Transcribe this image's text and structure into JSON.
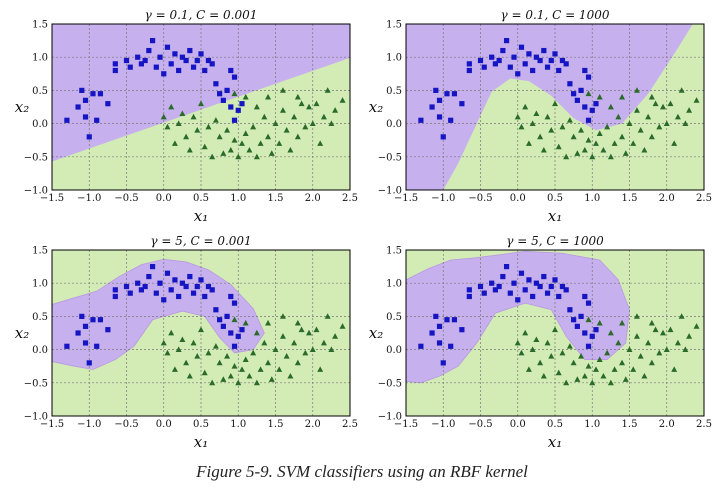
{
  "caption": "Figure 5-9. SVM classifiers using an RBF kernel",
  "colors": {
    "blue_region": "#c7b0ee",
    "green_region": "#d3ecb6",
    "square": "#1515c4",
    "triangle": "#2a6b2a"
  },
  "chart_data": [
    {
      "type": "scatter",
      "title": "γ = 0.1, C = 0.001",
      "xlabel": "x₁",
      "ylabel": "x₂",
      "xlim": [
        -1.5,
        2.5
      ],
      "ylim": [
        -1.0,
        1.5
      ],
      "grid": true,
      "xticks": [
        "−1.5",
        "−1.0",
        "−0.5",
        "0.0",
        "0.5",
        "1.0",
        "1.5",
        "2.0",
        "2.5"
      ],
      "yticks": [
        "−1.0",
        "−0.5",
        "0.0",
        "0.5",
        "1.0",
        "1.5"
      ],
      "boundary": [
        [
          -1.5,
          -0.57
        ],
        [
          2.5,
          0.99
        ]
      ]
    },
    {
      "type": "scatter",
      "title": "γ = 0.1, C = 1000",
      "xlabel": "x₁",
      "ylabel": "x₂",
      "xlim": [
        -1.5,
        2.5
      ],
      "ylim": [
        -1.0,
        1.5
      ],
      "grid": true,
      "xticks": [
        "−1.5",
        "−1.0",
        "−0.5",
        "0.0",
        "0.5",
        "1.0",
        "1.5",
        "2.0",
        "2.5"
      ],
      "yticks": [
        "−1.0",
        "−0.5",
        "0.0",
        "0.5",
        "1.0",
        "1.5"
      ],
      "boundary": [
        [
          -1.0,
          -1.0
        ],
        [
          -0.8,
          -0.6
        ],
        [
          -0.55,
          0.0
        ],
        [
          -0.35,
          0.48
        ],
        [
          -0.1,
          0.68
        ],
        [
          0.15,
          0.64
        ],
        [
          0.45,
          0.42
        ],
        [
          0.75,
          0.08
        ],
        [
          1.05,
          -0.1
        ],
        [
          1.4,
          0.0
        ],
        [
          1.75,
          0.45
        ],
        [
          2.1,
          1.05
        ],
        [
          2.35,
          1.5
        ]
      ]
    },
    {
      "type": "scatter",
      "title": "γ = 5, C = 0.001",
      "xlabel": "x₁",
      "ylabel": "x₂",
      "xlim": [
        -1.5,
        2.5
      ],
      "ylim": [
        -1.0,
        1.5
      ],
      "grid": true,
      "xticks": [
        "−1.5",
        "−1.0",
        "−0.5",
        "0.0",
        "0.5",
        "1.0",
        "1.5",
        "2.0",
        "2.5"
      ],
      "yticks": [
        "−1.0",
        "−0.5",
        "0.0",
        "0.5",
        "1.0",
        "1.5"
      ],
      "region": [
        [
          -1.5,
          0.68
        ],
        [
          -1.2,
          0.78
        ],
        [
          -0.9,
          0.88
        ],
        [
          -0.6,
          1.1
        ],
        [
          -0.3,
          1.28
        ],
        [
          0.0,
          1.36
        ],
        [
          0.3,
          1.32
        ],
        [
          0.6,
          1.2
        ],
        [
          0.9,
          0.98
        ],
        [
          1.2,
          0.62
        ],
        [
          1.35,
          0.25
        ],
        [
          1.2,
          0.0
        ],
        [
          0.95,
          -0.05
        ],
        [
          0.75,
          0.18
        ],
        [
          0.55,
          0.5
        ],
        [
          0.25,
          0.58
        ],
        [
          -0.15,
          0.45
        ],
        [
          -0.4,
          0.05
        ],
        [
          -0.65,
          -0.15
        ],
        [
          -0.95,
          -0.3
        ],
        [
          -1.2,
          -0.25
        ],
        [
          -1.5,
          -0.18
        ]
      ]
    },
    {
      "type": "scatter",
      "title": "γ = 5, C = 1000",
      "xlabel": "x₁",
      "ylabel": "x₂",
      "xlim": [
        -1.5,
        2.5
      ],
      "ylim": [
        -1.0,
        1.5
      ],
      "grid": true,
      "xticks": [
        "−1.5",
        "−1.0",
        "−0.5",
        "0.0",
        "0.5",
        "1.0",
        "1.5",
        "2.0",
        "2.5"
      ],
      "yticks": [
        "−1.0",
        "−0.5",
        "0.0",
        "0.5",
        "1.0",
        "1.5"
      ],
      "region": [
        [
          -1.5,
          1.05
        ],
        [
          -1.2,
          1.22
        ],
        [
          -0.9,
          1.35
        ],
        [
          -0.6,
          1.38
        ],
        [
          -0.3,
          1.42
        ],
        [
          0.1,
          1.48
        ],
        [
          0.6,
          1.45
        ],
        [
          1.1,
          1.35
        ],
        [
          1.35,
          1.05
        ],
        [
          1.5,
          0.6
        ],
        [
          1.45,
          0.1
        ],
        [
          1.2,
          -0.15
        ],
        [
          0.9,
          -0.15
        ],
        [
          0.65,
          0.2
        ],
        [
          0.45,
          0.6
        ],
        [
          0.1,
          0.7
        ],
        [
          -0.3,
          0.55
        ],
        [
          -0.55,
          0.1
        ],
        [
          -0.8,
          -0.25
        ],
        [
          -1.05,
          -0.4
        ],
        [
          -1.3,
          -0.5
        ],
        [
          -1.5,
          -0.48
        ]
      ]
    }
  ],
  "points": {
    "squares": [
      [
        -1.3,
        0.05
      ],
      [
        -1.15,
        0.25
      ],
      [
        -1.1,
        0.5
      ],
      [
        -1.05,
        0.35
      ],
      [
        -1.05,
        0.1
      ],
      [
        -1.0,
        -0.2
      ],
      [
        -0.95,
        0.45
      ],
      [
        -0.9,
        0.05
      ],
      [
        -0.85,
        0.45
      ],
      [
        -0.75,
        0.3
      ],
      [
        -0.65,
        0.9
      ],
      [
        -0.65,
        0.8
      ],
      [
        -0.5,
        0.95
      ],
      [
        -0.45,
        0.85
      ],
      [
        -0.35,
        1.0
      ],
      [
        -0.3,
        0.9
      ],
      [
        -0.25,
        0.95
      ],
      [
        -0.2,
        1.1
      ],
      [
        -0.15,
        1.25
      ],
      [
        -0.1,
        0.85
      ],
      [
        -0.05,
        1.0
      ],
      [
        0.0,
        0.75
      ],
      [
        0.05,
        1.15
      ],
      [
        0.1,
        0.9
      ],
      [
        0.15,
        1.05
      ],
      [
        0.2,
        0.8
      ],
      [
        0.25,
        1.0
      ],
      [
        0.3,
        0.95
      ],
      [
        0.35,
        1.1
      ],
      [
        0.4,
        0.85
      ],
      [
        0.45,
        0.95
      ],
      [
        0.5,
        1.05
      ],
      [
        0.55,
        0.8
      ],
      [
        0.6,
        0.95
      ],
      [
        0.65,
        0.9
      ],
      [
        0.7,
        0.6
      ],
      [
        0.75,
        0.45
      ],
      [
        0.8,
        0.35
      ],
      [
        0.85,
        0.5
      ],
      [
        0.9,
        0.25
      ],
      [
        0.95,
        0.05
      ],
      [
        0.9,
        0.8
      ],
      [
        0.95,
        0.7
      ],
      [
        1.0,
        0.2
      ],
      [
        1.05,
        0.3
      ]
    ],
    "triangles": [
      [
        0.0,
        0.1
      ],
      [
        0.05,
        -0.05
      ],
      [
        0.1,
        0.25
      ],
      [
        0.15,
        -0.3
      ],
      [
        0.2,
        0.0
      ],
      [
        0.25,
        0.15
      ],
      [
        0.3,
        -0.2
      ],
      [
        0.35,
        -0.4
      ],
      [
        0.4,
        0.1
      ],
      [
        0.45,
        -0.1
      ],
      [
        0.5,
        0.3
      ],
      [
        0.55,
        -0.35
      ],
      [
        0.6,
        -0.05
      ],
      [
        0.65,
        -0.5
      ],
      [
        0.7,
        0.05
      ],
      [
        0.75,
        -0.2
      ],
      [
        0.8,
        -0.45
      ],
      [
        0.85,
        -0.1
      ],
      [
        0.9,
        -0.4
      ],
      [
        0.95,
        -0.25
      ],
      [
        1.0,
        -0.5
      ],
      [
        1.05,
        -0.3
      ],
      [
        1.1,
        -0.15
      ],
      [
        1.15,
        -0.4
      ],
      [
        1.2,
        -0.05
      ],
      [
        1.25,
        -0.5
      ],
      [
        1.3,
        -0.3
      ],
      [
        1.35,
        0.1
      ],
      [
        1.4,
        -0.2
      ],
      [
        1.45,
        -0.45
      ],
      [
        1.5,
        0.0
      ],
      [
        1.55,
        -0.3
      ],
      [
        1.6,
        0.2
      ],
      [
        1.65,
        -0.1
      ],
      [
        1.7,
        -0.4
      ],
      [
        1.75,
        0.1
      ],
      [
        1.8,
        -0.2
      ],
      [
        1.85,
        0.3
      ],
      [
        1.9,
        -0.05
      ],
      [
        1.95,
        0.25
      ],
      [
        2.0,
        0.0
      ],
      [
        2.05,
        0.3
      ],
      [
        2.1,
        -0.3
      ],
      [
        2.15,
        0.1
      ],
      [
        2.2,
        0.5
      ],
      [
        2.25,
        0.0
      ],
      [
        2.3,
        0.2
      ],
      [
        2.4,
        0.35
      ],
      [
        0.95,
        0.45
      ],
      [
        1.1,
        0.4
      ],
      [
        1.25,
        0.25
      ],
      [
        1.6,
        0.5
      ],
      [
        1.8,
        0.4
      ],
      [
        1.4,
        0.4
      ]
    ]
  }
}
